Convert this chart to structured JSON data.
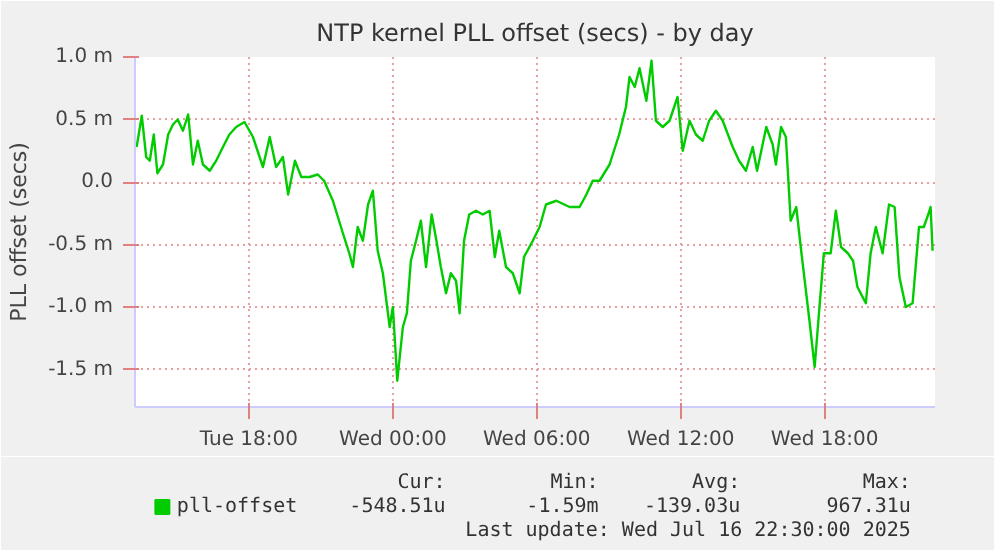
{
  "chart_data": {
    "type": "line",
    "title": "NTP kernel PLL offset (secs) - by day",
    "ylabel": "PLL offset (secs)",
    "x": [
      "2025-07-15T13:19",
      "2025-07-15T13:32",
      "2025-07-15T13:43",
      "2025-07-15T13:52",
      "2025-07-15T14:02",
      "2025-07-15T14:11",
      "2025-07-15T14:25",
      "2025-07-15T14:38",
      "2025-07-15T14:50",
      "2025-07-15T15:02",
      "2025-07-15T15:15",
      "2025-07-15T15:28",
      "2025-07-15T15:40",
      "2025-07-15T15:52",
      "2025-07-15T16:05",
      "2025-07-15T16:22",
      "2025-07-15T16:38",
      "2025-07-15T16:55",
      "2025-07-15T17:11",
      "2025-07-15T17:28",
      "2025-07-15T17:49",
      "2025-07-15T18:10",
      "2025-07-15T18:35",
      "2025-07-15T18:52",
      "2025-07-15T19:08",
      "2025-07-15T19:25",
      "2025-07-15T19:38",
      "2025-07-15T19:55",
      "2025-07-15T20:11",
      "2025-07-15T20:32",
      "2025-07-15T20:52",
      "2025-07-15T21:08",
      "2025-07-15T21:30",
      "2025-07-15T21:55",
      "2025-07-15T22:11",
      "2025-07-15T22:20",
      "2025-07-15T22:32",
      "2025-07-15T22:45",
      "2025-07-15T22:58",
      "2025-07-15T23:10",
      "2025-07-15T23:22",
      "2025-07-15T23:35",
      "2025-07-15T23:52",
      "2025-07-16T00:00",
      "2025-07-16T00:11",
      "2025-07-16T00:25",
      "2025-07-16T00:35",
      "2025-07-16T00:45",
      "2025-07-16T00:58",
      "2025-07-16T01:10",
      "2025-07-16T01:23",
      "2025-07-16T01:37",
      "2025-07-16T01:49",
      "2025-07-16T02:00",
      "2025-07-16T02:13",
      "2025-07-16T02:25",
      "2025-07-16T02:38",
      "2025-07-16T02:47",
      "2025-07-16T02:58",
      "2025-07-16T03:11",
      "2025-07-16T03:28",
      "2025-07-16T03:45",
      "2025-07-16T04:02",
      "2025-07-16T04:15",
      "2025-07-16T04:26",
      "2025-07-16T04:43",
      "2025-07-16T05:00",
      "2025-07-16T05:17",
      "2025-07-16T05:28",
      "2025-07-16T05:50",
      "2025-07-16T06:07",
      "2025-07-16T06:23",
      "2025-07-16T06:49",
      "2025-07-16T07:22",
      "2025-07-16T07:47",
      "2025-07-16T08:04",
      "2025-07-16T08:20",
      "2025-07-16T08:37",
      "2025-07-16T09:02",
      "2025-07-16T09:26",
      "2025-07-16T09:43",
      "2025-07-16T09:52",
      "2025-07-16T10:05",
      "2025-07-16T10:17",
      "2025-07-16T10:34",
      "2025-07-16T10:47",
      "2025-07-16T10:58",
      "2025-07-16T11:15",
      "2025-07-16T11:32",
      "2025-07-16T11:52",
      "2025-07-16T12:05",
      "2025-07-16T12:22",
      "2025-07-16T12:38",
      "2025-07-16T12:55",
      "2025-07-16T13:11",
      "2025-07-16T13:28",
      "2025-07-16T13:45",
      "2025-07-16T14:10",
      "2025-07-16T14:26",
      "2025-07-16T14:43",
      "2025-07-16T15:00",
      "2025-07-16T15:11",
      "2025-07-16T15:34",
      "2025-07-16T15:50",
      "2025-07-16T15:58",
      "2025-07-16T16:11",
      "2025-07-16T16:23",
      "2025-07-16T16:35",
      "2025-07-16T16:49",
      "2025-07-16T17:02",
      "2025-07-16T17:22",
      "2025-07-16T17:35",
      "2025-07-16T17:47",
      "2025-07-16T17:58",
      "2025-07-16T18:15",
      "2025-07-16T18:28",
      "2025-07-16T18:41",
      "2025-07-16T18:58",
      "2025-07-16T19:11",
      "2025-07-16T19:22",
      "2025-07-16T19:43",
      "2025-07-16T19:55",
      "2025-07-16T20:08",
      "2025-07-16T20:25",
      "2025-07-16T20:41",
      "2025-07-16T20:55",
      "2025-07-16T21:07",
      "2025-07-16T21:23",
      "2025-07-16T21:40",
      "2025-07-16T21:56",
      "2025-07-16T22:08",
      "2025-07-16T22:19",
      "2025-07-16T22:25",
      "2025-07-16T22:30"
    ],
    "series": [
      {
        "name": "pll-offset",
        "color": "#00cc00",
        "values": [
          0.28,
          0.53,
          0.2,
          0.17,
          0.38,
          0.07,
          0.14,
          0.38,
          0.46,
          0.5,
          0.41,
          0.54,
          0.14,
          0.33,
          0.14,
          0.09,
          0.17,
          0.28,
          0.38,
          0.44,
          0.48,
          0.36,
          0.12,
          0.36,
          0.12,
          0.2,
          -0.1,
          0.17,
          0.04,
          0.04,
          0.06,
          0.01,
          -0.15,
          -0.41,
          -0.57,
          -0.68,
          -0.36,
          -0.47,
          -0.18,
          -0.07,
          -0.55,
          -0.73,
          -1.16,
          -1.0,
          -1.59,
          -1.16,
          -1.05,
          -0.63,
          -0.47,
          -0.31,
          -0.68,
          -0.26,
          -0.47,
          -0.68,
          -0.89,
          -0.73,
          -0.79,
          -1.05,
          -0.47,
          -0.26,
          -0.23,
          -0.26,
          -0.23,
          -0.6,
          -0.39,
          -0.68,
          -0.73,
          -0.89,
          -0.6,
          -0.47,
          -0.36,
          -0.18,
          -0.15,
          -0.2,
          -0.2,
          -0.1,
          0.01,
          0.01,
          0.14,
          0.38,
          0.6,
          0.84,
          0.76,
          0.91,
          0.65,
          0.97,
          0.49,
          0.44,
          0.49,
          0.68,
          0.25,
          0.49,
          0.38,
          0.33,
          0.49,
          0.57,
          0.49,
          0.28,
          0.17,
          0.09,
          0.28,
          0.09,
          0.44,
          0.3,
          0.14,
          0.44,
          0.36,
          -0.31,
          -0.2,
          -0.57,
          -1.11,
          -1.48,
          -1.0,
          -0.57,
          -0.57,
          -0.23,
          -0.52,
          -0.57,
          -0.63,
          -0.84,
          -0.97,
          -0.57,
          -0.36,
          -0.57,
          -0.18,
          -0.2,
          -0.76,
          -1.0,
          -0.97,
          -0.36,
          -0.36,
          -0.26,
          -0.2,
          -0.55
        ]
      }
    ],
    "xlim": [
      "2025-07-15T13:15",
      "2025-07-16T22:36"
    ],
    "xticks": [
      {
        "value": "2025-07-15T18:00",
        "label": "Tue 18:00"
      },
      {
        "value": "2025-07-16T00:00",
        "label": "Wed 00:00"
      },
      {
        "value": "2025-07-16T06:00",
        "label": "Wed 06:00"
      },
      {
        "value": "2025-07-16T12:00",
        "label": "Wed 12:00"
      },
      {
        "value": "2025-07-16T18:00",
        "label": "Wed 18:00"
      }
    ],
    "ylim": [
      -1.8,
      1.0
    ],
    "yticks": [
      {
        "value": -1.5,
        "label": "-1.5 m"
      },
      {
        "value": -1.0,
        "label": "-1.0 m"
      },
      {
        "value": -0.5,
        "label": "-0.5 m"
      },
      {
        "value": 0,
        "label": "0.0"
      },
      {
        "value": 0.5,
        "label": "0.5 m"
      },
      {
        "value": 1.0,
        "label": "1.0 m"
      }
    ],
    "grid": true,
    "legend": "bottom",
    "marker": "none",
    "line_style": "solid",
    "annotations": [
      "Cur:",
      "-548.51u",
      "Min:",
      "-1.59m",
      "Avg:",
      "-139.03u",
      "Max:",
      "967.31u",
      "Last update: Wed Jul 16 22:30:00 2025"
    ]
  }
}
